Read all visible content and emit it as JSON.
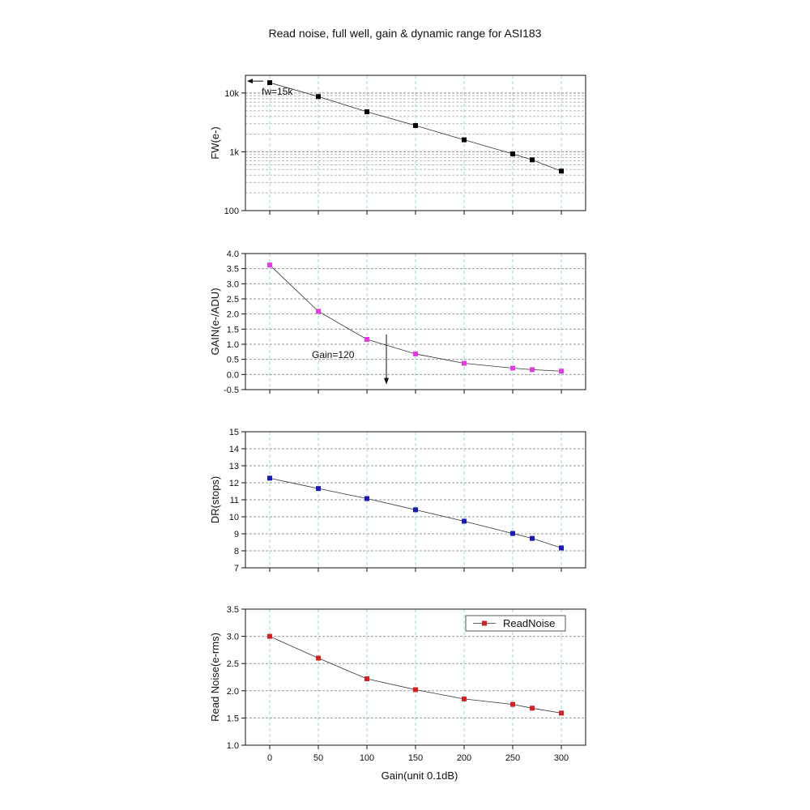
{
  "title": "Read noise, full well, gain & dynamic range for ASI183",
  "chart_data": [
    {
      "type": "line",
      "id": "fw",
      "ylabel": "FW(e-)",
      "yscale": "log",
      "ylim": [
        100,
        20000
      ],
      "yticks": [
        100,
        1000,
        10000
      ],
      "ytick_labels": [
        "100",
        "1k",
        "10k"
      ],
      "x": [
        0,
        50,
        100,
        150,
        200,
        250,
        270,
        300
      ],
      "series": [
        {
          "name": "FW",
          "color": "#000000",
          "values": [
            15000,
            8700,
            4800,
            2800,
            1600,
            920,
            730,
            470
          ]
        }
      ],
      "annotation": {
        "text": "fw=15k",
        "x": 0,
        "y": 15000
      }
    },
    {
      "type": "line",
      "id": "gain",
      "ylabel": "GAIN(e-/ADU)",
      "yscale": "linear",
      "ylim": [
        -0.5,
        4.0
      ],
      "yticks": [
        -0.5,
        0.0,
        0.5,
        1.0,
        1.5,
        2.0,
        2.5,
        3.0,
        3.5,
        4.0
      ],
      "ytick_labels": [
        "-0.5",
        "0.0",
        "0.5",
        "1.0",
        "1.5",
        "2.0",
        "2.5",
        "3.0",
        "3.5",
        "4.0"
      ],
      "x": [
        0,
        50,
        100,
        150,
        200,
        250,
        270,
        300
      ],
      "series": [
        {
          "name": "GAIN",
          "color": "#e23be2",
          "values": [
            3.62,
            2.09,
            1.16,
            0.68,
            0.37,
            0.21,
            0.16,
            0.11
          ]
        }
      ],
      "annotation": {
        "text": "Gain=120",
        "x": 120,
        "y": 1.0
      }
    },
    {
      "type": "line",
      "id": "dr",
      "ylabel": "DR(stops)",
      "yscale": "linear",
      "ylim": [
        7,
        15
      ],
      "yticks": [
        7,
        8,
        9,
        10,
        11,
        12,
        13,
        14,
        15
      ],
      "ytick_labels": [
        "7",
        "8",
        "9",
        "10",
        "11",
        "12",
        "13",
        "14",
        "15"
      ],
      "x": [
        0,
        50,
        100,
        150,
        200,
        250,
        270,
        300
      ],
      "series": [
        {
          "name": "DR",
          "color": "#1a1ab4",
          "values": [
            12.27,
            11.66,
            11.07,
            10.41,
            9.74,
            9.02,
            8.73,
            8.17
          ]
        }
      ]
    },
    {
      "type": "line",
      "id": "rn",
      "ylabel": "Read Noise(e-rms)",
      "xlabel": "Gain(unit 0.1dB)",
      "yscale": "linear",
      "ylim": [
        1.0,
        3.5
      ],
      "yticks": [
        1.0,
        1.5,
        2.0,
        2.5,
        3.0,
        3.5
      ],
      "ytick_labels": [
        "1.0",
        "1.5",
        "2.0",
        "2.5",
        "3.0",
        "3.5"
      ],
      "xlim": [
        -25,
        325
      ],
      "xticks": [
        0,
        50,
        100,
        150,
        200,
        250,
        300
      ],
      "xtick_labels": [
        "0",
        "50",
        "100",
        "150",
        "200",
        "250",
        "300"
      ],
      "x": [
        0,
        50,
        100,
        150,
        200,
        250,
        270,
        300
      ],
      "series": [
        {
          "name": "ReadNoise",
          "color": "#d42020",
          "values": [
            3.0,
            2.6,
            2.22,
            2.02,
            1.85,
            1.75,
            1.68,
            1.59
          ]
        }
      ],
      "legend": {
        "label": "ReadNoise",
        "position": "top-right"
      }
    }
  ]
}
